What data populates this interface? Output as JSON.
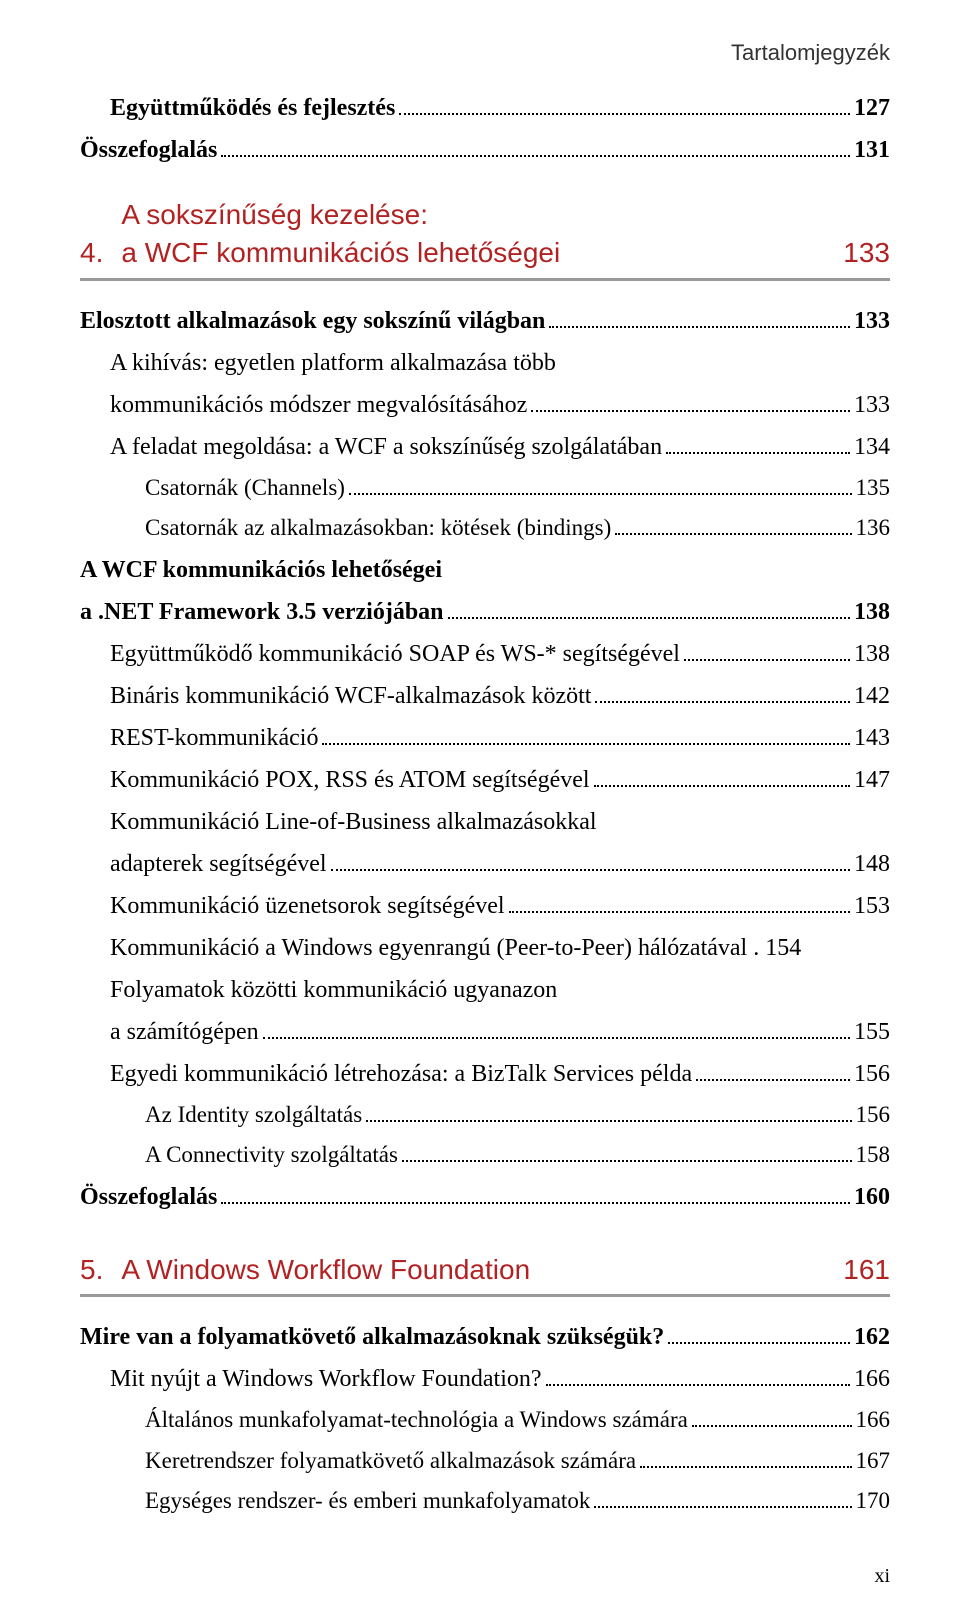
{
  "header": "Tartalomjegyzék",
  "pre_entries": [
    {
      "label": "Együttműködés és fejlesztés",
      "page": "127",
      "level": 1,
      "bold": true
    },
    {
      "label": "Összefoglalás",
      "page": "131",
      "level": 0,
      "bold": true
    }
  ],
  "chapter4": {
    "num": "4.",
    "title_line1": "A sokszínűség kezelése:",
    "title_line2": "a WCF kommunikációs lehetőségei",
    "page": "133"
  },
  "ch4_entries": [
    {
      "label": "Elosztott alkalmazások egy sokszínű világban",
      "page": "133",
      "level": 0,
      "bold": true
    },
    {
      "label": "A kihívás: egyetlen platform alkalmazása több",
      "label2": "kommunikációs módszer megvalósításához",
      "page": "133",
      "level": 1,
      "bold": false,
      "wrap": true
    },
    {
      "label": "A feladat megoldása: a WCF a sokszínűség szolgálatában",
      "page": "134",
      "level": 1,
      "bold": false
    },
    {
      "label": "Csatornák (Channels)",
      "page": "135",
      "level": 2,
      "bold": false
    },
    {
      "label": "Csatornák az alkalmazásokban: kötések (bindings)",
      "page": "136",
      "level": 2,
      "bold": false
    },
    {
      "label": "A WCF kommunikációs lehetőségei",
      "label2": "a .NET Framework 3.5 verziójában",
      "page": "138",
      "level": 0,
      "bold": true,
      "wrap": true
    },
    {
      "label": "Együttműködő kommunikáció SOAP és WS-* segítségével",
      "page": "138",
      "level": 1,
      "bold": false
    },
    {
      "label": "Bináris kommunikáció WCF-alkalmazások között",
      "page": "142",
      "level": 1,
      "bold": false
    },
    {
      "label": "REST-kommunikáció",
      "page": "143",
      "level": 1,
      "bold": false
    },
    {
      "label": "Kommunikáció POX, RSS és ATOM segítségével",
      "page": "147",
      "level": 1,
      "bold": false
    },
    {
      "label": "Kommunikáció Line-of-Business alkalmazásokkal",
      "label2": "adapterek segítségével",
      "page": "148",
      "level": 1,
      "bold": false,
      "wrap": true
    },
    {
      "label": "Kommunikáció üzenetsorok segítségével",
      "page": "153",
      "level": 1,
      "bold": false
    },
    {
      "label": "Kommunikáció a Windows egyenrangú (Peer-to-Peer) hálózatával",
      "page": "154",
      "level": 1,
      "bold": false,
      "nodots": true
    },
    {
      "label": "Folyamatok közötti kommunikáció ugyanazon",
      "label2": "a számítógépen",
      "page": "155",
      "level": 1,
      "bold": false,
      "wrap": true
    },
    {
      "label": "Egyedi kommunikáció létrehozása: a BizTalk Services példa",
      "page": "156",
      "level": 1,
      "bold": false
    },
    {
      "label": "Az Identity szolgáltatás",
      "page": "156",
      "level": 2,
      "bold": false
    },
    {
      "label": "A Connectivity szolgáltatás",
      "page": "158",
      "level": 2,
      "bold": false
    },
    {
      "label": "Összefoglalás",
      "page": "160",
      "level": 0,
      "bold": true
    }
  ],
  "chapter5": {
    "num": "5.",
    "title": "A Windows Workflow Foundation",
    "page": "161"
  },
  "ch5_entries": [
    {
      "label": "Mire van a folyamatkövető alkalmazásoknak szükségük?",
      "page": "162",
      "level": 0,
      "bold": true
    },
    {
      "label": "Mit nyújt a Windows Workflow Foundation?",
      "page": "166",
      "level": 1,
      "bold": false
    },
    {
      "label": "Általános munkafolyamat-technológia a Windows számára",
      "page": "166",
      "level": 2,
      "bold": false
    },
    {
      "label": "Keretrendszer folyamatkövető alkalmazások számára",
      "page": "167",
      "level": 2,
      "bold": false
    },
    {
      "label": "Egységes rendszer- és emberi munkafolyamatok",
      "page": "170",
      "level": 2,
      "bold": false
    }
  ],
  "footer_page": "xi"
}
